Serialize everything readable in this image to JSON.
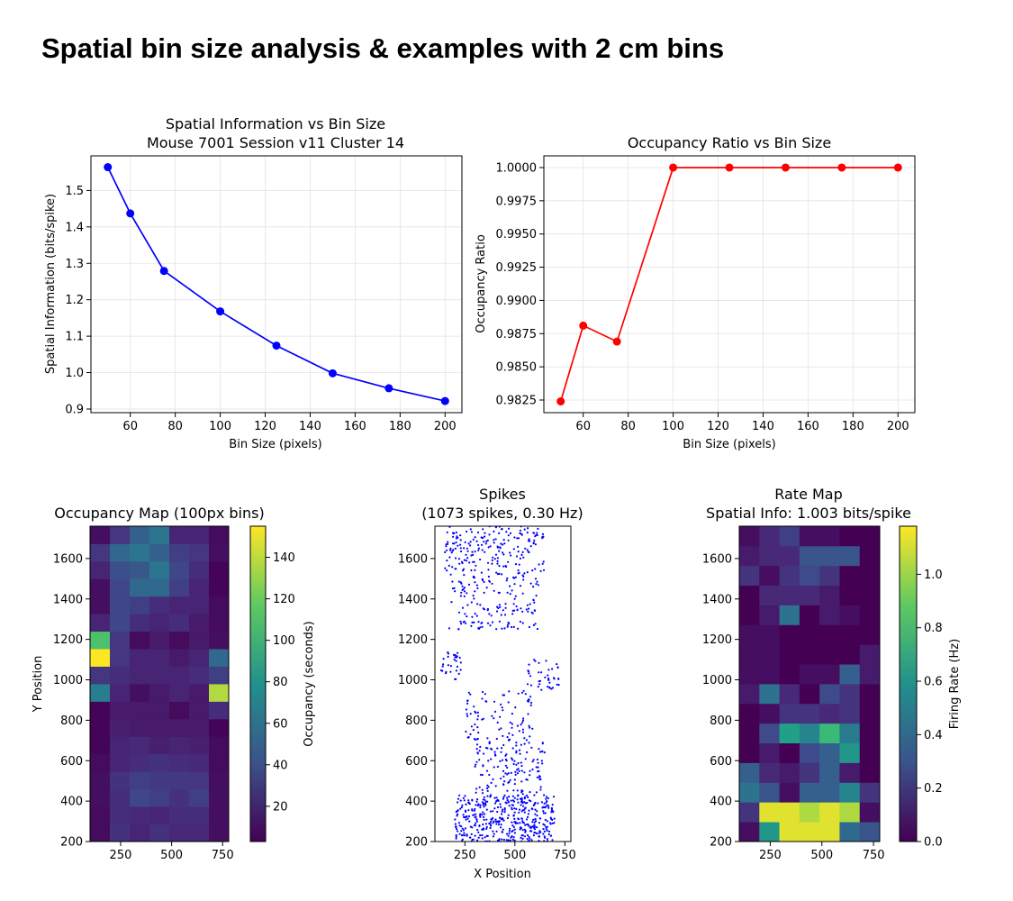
{
  "suptitle": "Spatial bin size analysis & examples with 2 cm bins",
  "chart_data": [
    {
      "type": "line",
      "title": "Spatial Information vs Bin Size",
      "subtitle": "Mouse 7001 Session v11 Cluster 14",
      "xlabel": "Bin Size (pixels)",
      "ylabel": "Spatial Information (bits/spike)",
      "x": [
        50,
        60,
        75,
        100,
        125,
        150,
        175,
        200
      ],
      "y": [
        1.564,
        1.437,
        1.279,
        1.168,
        1.074,
        0.998,
        0.957,
        0.922
      ],
      "xlim": [
        42.5,
        207.5
      ],
      "ylim": [
        0.89,
        1.595
      ],
      "xticks": [
        60,
        80,
        100,
        120,
        140,
        160,
        180,
        200
      ],
      "xtick_labels": [
        "60",
        "80",
        "100",
        "120",
        "140",
        "160",
        "180",
        "200"
      ],
      "yticks": [
        0.9,
        1.0,
        1.1,
        1.2,
        1.3,
        1.4,
        1.5
      ],
      "ytick_labels": [
        "0.9",
        "1.0",
        "1.1",
        "1.2",
        "1.3",
        "1.4",
        "1.5"
      ],
      "color": "#0000ff",
      "grid": true
    },
    {
      "type": "line",
      "title": "Occupancy Ratio vs Bin Size",
      "xlabel": "Bin Size (pixels)",
      "ylabel": "Occupancy Ratio",
      "x": [
        50,
        60,
        75,
        100,
        125,
        150,
        175,
        200
      ],
      "y": [
        0.9824,
        0.9881,
        0.9869,
        1.0,
        1.0,
        1.0,
        1.0,
        1.0
      ],
      "xlim": [
        42.5,
        207.5
      ],
      "ylim": [
        0.98155,
        1.00088
      ],
      "xticks": [
        60,
        80,
        100,
        120,
        140,
        160,
        180,
        200
      ],
      "xtick_labels": [
        "60",
        "80",
        "100",
        "120",
        "140",
        "160",
        "180",
        "200"
      ],
      "yticks": [
        0.9825,
        0.985,
        0.9875,
        0.99,
        0.9925,
        0.995,
        0.9975,
        1.0
      ],
      "ytick_labels": [
        "0.9825",
        "0.9850",
        "0.9875",
        "0.9900",
        "0.9925",
        "0.9950",
        "0.9975",
        "1.0000"
      ],
      "color": "#ff0000",
      "grid": true
    },
    {
      "type": "heatmap",
      "title": "Occupancy Map (100px bins)",
      "ylabel": "Y Position",
      "colorbar_label": "Occupancy (seconds)",
      "colormap": "viridis",
      "vmin": 3,
      "vmax": 155,
      "x_range": [
        100,
        780
      ],
      "y_range": [
        200,
        1760
      ],
      "xticks": [
        250,
        500,
        750
      ],
      "xtick_labels": [
        "250",
        "500",
        "750"
      ],
      "yticks": [
        200,
        400,
        600,
        800,
        1000,
        1200,
        1400,
        1600
      ],
      "ytick_labels": [
        "200",
        "400",
        "600",
        "800",
        "1000",
        "1200",
        "1400",
        "1600"
      ],
      "cbar_ticks": [
        20,
        40,
        60,
        80,
        100,
        120,
        140
      ],
      "cbar_tick_labels": [
        "20",
        "40",
        "60",
        "80",
        "100",
        "120",
        "140"
      ],
      "rows": [
        [
          8,
          28,
          20,
          28,
          22,
          22,
          10
        ],
        [
          8,
          25,
          22,
          20,
          25,
          25,
          10
        ],
        [
          10,
          25,
          40,
          35,
          28,
          35,
          10
        ],
        [
          10,
          28,
          35,
          32,
          32,
          30,
          10
        ],
        [
          8,
          20,
          25,
          28,
          25,
          22,
          8
        ],
        [
          5,
          20,
          22,
          18,
          20,
          18,
          8
        ],
        [
          5,
          18,
          15,
          15,
          15,
          15,
          5
        ],
        [
          5,
          15,
          15,
          15,
          8,
          15,
          25
        ],
        [
          75,
          20,
          10,
          15,
          20,
          15,
          145
        ],
        [
          30,
          25,
          20,
          20,
          20,
          25,
          35
        ],
        [
          155,
          30,
          20,
          20,
          15,
          20,
          60
        ],
        [
          125,
          30,
          8,
          15,
          8,
          15,
          10
        ],
        [
          20,
          40,
          25,
          20,
          25,
          15,
          8
        ],
        [
          10,
          40,
          35,
          25,
          20,
          20,
          8
        ],
        [
          10,
          40,
          60,
          60,
          35,
          20,
          5
        ],
        [
          20,
          45,
          50,
          70,
          40,
          25,
          5
        ],
        [
          30,
          60,
          70,
          55,
          35,
          30,
          10
        ],
        [
          10,
          30,
          55,
          70,
          20,
          20,
          8
        ]
      ]
    },
    {
      "type": "scatter",
      "title": "Spikes",
      "subtitle": "(1073 spikes, 0.30 Hz)",
      "xlabel": "X Position",
      "x_range": [
        100,
        780
      ],
      "y_range": [
        200,
        1760
      ],
      "xticks": [
        250,
        500,
        750
      ],
      "xtick_labels": [
        "250",
        "500",
        "750"
      ],
      "yticks": [
        200,
        400,
        600,
        800,
        1000,
        1200,
        1400,
        1600
      ],
      "ytick_labels": [
        "200",
        "400",
        "600",
        "800",
        "1000",
        "1200",
        "1400",
        "1600"
      ],
      "color": "#0000ff",
      "clusters": [
        {
          "x": [
            200,
            700
          ],
          "y": [
            200,
            430
          ],
          "n": 420
        },
        {
          "x": [
            300,
            650
          ],
          "y": [
            430,
            700
          ],
          "n": 140
        },
        {
          "x": [
            250,
            600
          ],
          "y": [
            700,
            950
          ],
          "n": 90
        },
        {
          "x": [
            550,
            720
          ],
          "y": [
            950,
            1100
          ],
          "n": 40
        },
        {
          "x": [
            130,
            230
          ],
          "y": [
            1000,
            1150
          ],
          "n": 30
        },
        {
          "x": [
            170,
            620
          ],
          "y": [
            1250,
            1520
          ],
          "n": 150
        },
        {
          "x": [
            150,
            650
          ],
          "y": [
            1520,
            1760
          ],
          "n": 200
        }
      ]
    },
    {
      "type": "heatmap",
      "title": "Rate Map",
      "subtitle": "Spatial Info: 1.003 bits/spike",
      "colorbar_label": "Firing Rate (Hz)",
      "colormap": "viridis",
      "vmin": 0,
      "vmax": 1.18,
      "x_range": [
        100,
        780
      ],
      "y_range": [
        200,
        1760
      ],
      "xticks": [
        250,
        500,
        750
      ],
      "xtick_labels": [
        "250",
        "500",
        "750"
      ],
      "yticks": [
        200,
        400,
        600,
        800,
        1000,
        1200,
        1400,
        1600
      ],
      "ytick_labels": [
        "200",
        "400",
        "600",
        "800",
        "1000",
        "1200",
        "1400",
        "1600"
      ],
      "cbar_ticks": [
        0.0,
        0.2,
        0.4,
        0.6,
        0.8,
        1.0
      ],
      "cbar_tick_labels": [
        "0.0",
        "0.2",
        "0.4",
        "0.6",
        "0.8",
        "1.0"
      ],
      "rows": [
        [
          0.05,
          0.7,
          1.15,
          1.15,
          1.15,
          0.45,
          0.35
        ],
        [
          0.2,
          1.15,
          1.15,
          1.1,
          1.15,
          1.1,
          0.05
        ],
        [
          0.5,
          0.35,
          0.05,
          0.4,
          0.4,
          0.6,
          0.2
        ],
        [
          0.4,
          0.15,
          0.1,
          0.2,
          0.4,
          0.1,
          0.0
        ],
        [
          0.0,
          0.1,
          0.0,
          0.3,
          0.4,
          0.7,
          0.0
        ],
        [
          0.0,
          0.3,
          0.75,
          0.6,
          0.9,
          0.55,
          0.0
        ],
        [
          0.0,
          0.05,
          0.2,
          0.2,
          0.15,
          0.2,
          0.0
        ],
        [
          0.1,
          0.5,
          0.15,
          0.0,
          0.3,
          0.2,
          0.0
        ],
        [
          0.05,
          0.05,
          0.0,
          0.05,
          0.05,
          0.4,
          0.1
        ],
        [
          0.05,
          0.05,
          0.0,
          0.0,
          0.0,
          0.0,
          0.1
        ],
        [
          0.05,
          0.05,
          0.0,
          0.0,
          0.0,
          0.0,
          0.0
        ],
        [
          0.0,
          0.1,
          0.5,
          0.0,
          0.1,
          0.05,
          0.0
        ],
        [
          0.0,
          0.15,
          0.15,
          0.15,
          0.1,
          0.0,
          0.0
        ],
        [
          0.2,
          0.05,
          0.2,
          0.3,
          0.2,
          0.0,
          0.0
        ],
        [
          0.1,
          0.15,
          0.15,
          0.35,
          0.35,
          0.35,
          0.0
        ],
        [
          0.05,
          0.15,
          0.25,
          0.05,
          0.05,
          0.0,
          0.0
        ]
      ]
    }
  ]
}
